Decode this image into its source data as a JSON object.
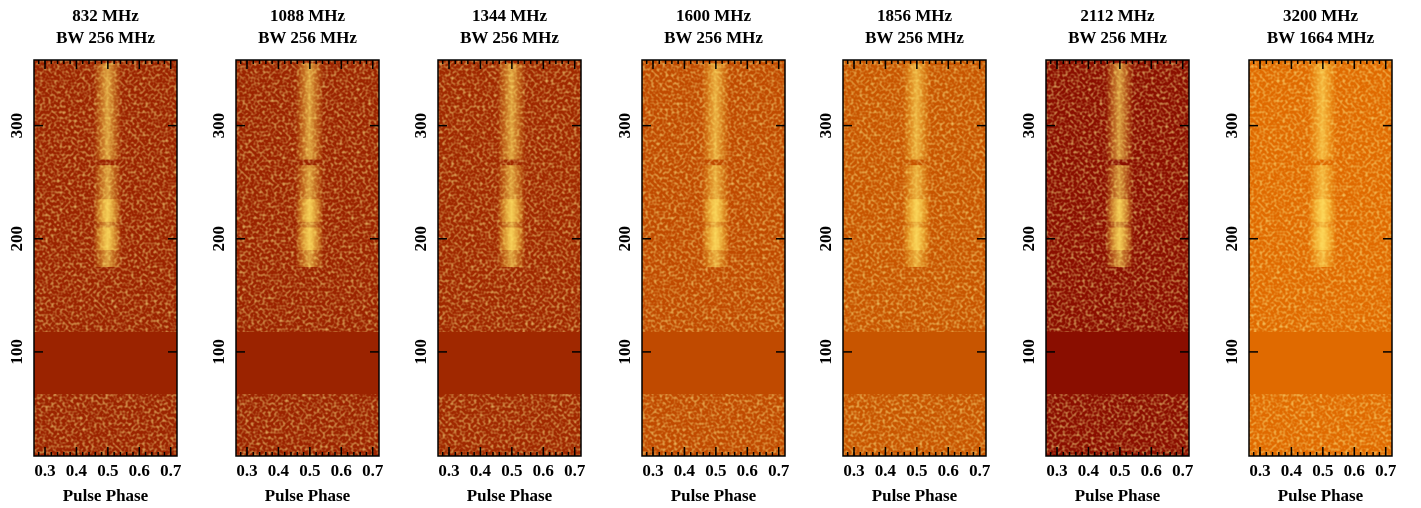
{
  "chart_data": [
    {
      "type": "heatmap",
      "title": "832 MHz",
      "subtitle": "BW 256 MHz",
      "xlabel": "Pulse Phase",
      "color": "#9b2300",
      "xlim": [
        0.265,
        0.72
      ],
      "ylim": [
        8,
        358
      ],
      "xticks": [
        0.3,
        0.4,
        0.5,
        0.6,
        0.7
      ],
      "yticks": [
        100,
        200,
        300
      ]
    },
    {
      "type": "heatmap",
      "title": "1088 MHz",
      "subtitle": "BW 256 MHz",
      "xlabel": "Pulse Phase",
      "color": "#9b2300",
      "xlim": [
        0.265,
        0.72
      ],
      "ylim": [
        8,
        358
      ],
      "xticks": [
        0.3,
        0.4,
        0.5,
        0.6,
        0.7
      ],
      "yticks": [
        100,
        200,
        300
      ]
    },
    {
      "type": "heatmap",
      "title": "1344 MHz",
      "subtitle": "BW 256 MHz",
      "xlabel": "Pulse Phase",
      "color": "#a02800",
      "xlim": [
        0.265,
        0.72
      ],
      "ylim": [
        8,
        358
      ],
      "xticks": [
        0.3,
        0.4,
        0.5,
        0.6,
        0.7
      ],
      "yticks": [
        100,
        200,
        300
      ]
    },
    {
      "type": "heatmap",
      "title": "1600 MHz",
      "subtitle": "BW 256 MHz",
      "xlabel": "Pulse Phase",
      "color": "#c04a00",
      "xlim": [
        0.265,
        0.72
      ],
      "ylim": [
        8,
        358
      ],
      "xticks": [
        0.3,
        0.4,
        0.5,
        0.6,
        0.7
      ],
      "yticks": [
        100,
        200,
        300
      ]
    },
    {
      "type": "heatmap",
      "title": "1856 MHz",
      "subtitle": "BW 256 MHz",
      "xlabel": "Pulse Phase",
      "color": "#c85500",
      "xlim": [
        0.265,
        0.72
      ],
      "ylim": [
        8,
        358
      ],
      "xticks": [
        0.3,
        0.4,
        0.5,
        0.6,
        0.7
      ],
      "yticks": [
        100,
        200,
        300
      ]
    },
    {
      "type": "heatmap",
      "title": "2112 MHz",
      "subtitle": "BW 256 MHz",
      "xlabel": "Pulse Phase",
      "color": "#8a0e00",
      "xlim": [
        0.265,
        0.72
      ],
      "ylim": [
        8,
        358
      ],
      "xticks": [
        0.3,
        0.4,
        0.5,
        0.6,
        0.7
      ],
      "yticks": [
        100,
        200,
        300
      ]
    },
    {
      "type": "heatmap",
      "title": "3200 MHz",
      "subtitle": "BW 1664 MHz",
      "xlabel": "Pulse Phase",
      "color": "#e06a00",
      "xlim": [
        0.265,
        0.72
      ],
      "ylim": [
        8,
        358
      ],
      "xticks": [
        0.3,
        0.4,
        0.5,
        0.6,
        0.7
      ],
      "yticks": [
        100,
        200,
        300
      ]
    }
  ]
}
